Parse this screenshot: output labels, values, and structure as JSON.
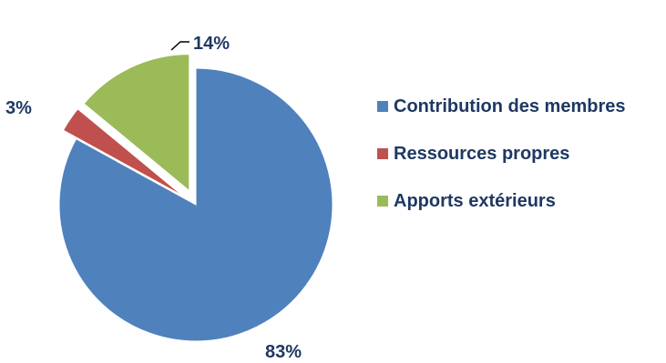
{
  "chart_data": {
    "type": "pie",
    "legend_position": "right",
    "slices": [
      {
        "label": "Contribution des membres",
        "value": 83,
        "value_label": "83%",
        "color": "#4f81bd",
        "exploded": false
      },
      {
        "label": "Ressources propres",
        "value": 3,
        "value_label": "3%",
        "color": "#c0504d",
        "exploded": true
      },
      {
        "label": "Apports extérieurs",
        "value": 14,
        "value_label": "14%",
        "color": "#9bbb59",
        "exploded": true
      }
    ]
  }
}
